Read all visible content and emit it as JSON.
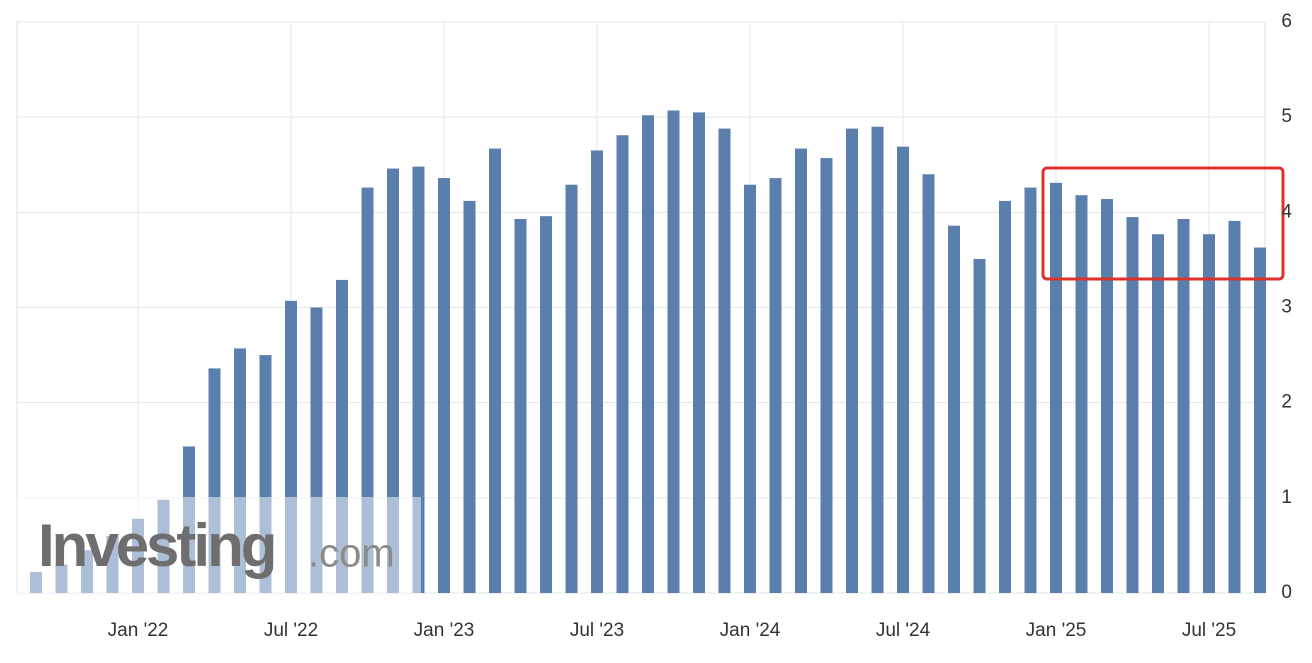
{
  "chart_data": {
    "type": "bar",
    "categories": [
      null,
      null,
      null,
      null,
      "Jan '22",
      null,
      null,
      null,
      null,
      null,
      "Jul '22",
      null,
      null,
      null,
      null,
      null,
      "Jan '23",
      null,
      null,
      null,
      null,
      null,
      "Jul '23",
      null,
      null,
      null,
      null,
      null,
      "Jan '24",
      null,
      null,
      null,
      null,
      null,
      "Jul '24",
      null,
      null,
      null,
      null,
      null,
      "Jan '25",
      null,
      null,
      null,
      null,
      null,
      "Jul '25",
      null,
      null
    ],
    "values": [
      0.22,
      0.3,
      0.45,
      0.6,
      0.78,
      0.98,
      1.54,
      2.36,
      2.57,
      2.5,
      3.07,
      3.0,
      3.29,
      4.26,
      4.46,
      4.48,
      4.36,
      4.12,
      4.67,
      3.93,
      3.96,
      4.29,
      4.65,
      4.81,
      5.02,
      5.07,
      5.05,
      4.88,
      4.29,
      4.36,
      4.67,
      4.57,
      4.88,
      4.9,
      4.69,
      4.4,
      3.86,
      3.51,
      4.12,
      4.26,
      4.31,
      4.18,
      4.14,
      3.95,
      3.77,
      3.93,
      3.77,
      3.91,
      3.63
    ],
    "color": "#5b7fad",
    "ylim": [
      0,
      6
    ],
    "yticks": [
      0,
      1,
      2,
      3,
      4,
      5,
      6
    ],
    "grid": true,
    "watermark": {
      "brand": "Investing",
      "suffix": ".com"
    }
  }
}
